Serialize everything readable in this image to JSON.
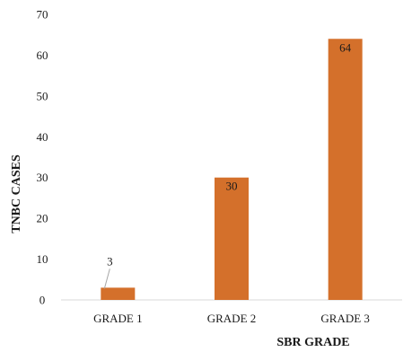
{
  "chart_data": {
    "type": "bar",
    "categories": [
      "GRADE 1",
      "GRADE 2",
      "GRADE 3"
    ],
    "values": [
      3,
      30,
      64
    ],
    "data_labels": [
      "3",
      "30",
      "64"
    ],
    "xlabel": "SBR GRADE",
    "ylabel": "TNBC CASES",
    "ylim": [
      0,
      70
    ],
    "yticks": [
      0,
      10,
      20,
      30,
      40,
      50,
      60,
      70
    ],
    "grid": false,
    "legend": "none",
    "bar_color": "#d4702b",
    "axis_color": "#d9d9d9"
  }
}
